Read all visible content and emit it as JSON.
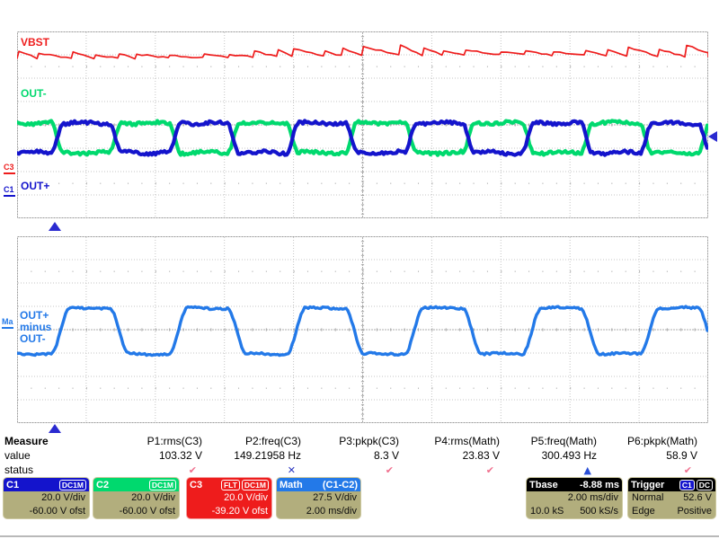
{
  "colors": {
    "c1": "#1414cc",
    "c2": "#00d96e",
    "c3": "#ee1c1c",
    "math": "#2379e8",
    "trigger_marker": "#2a2ad0",
    "grid": "#c4c4c4",
    "box_body": "#b2ae7d",
    "header_black": "#000000"
  },
  "display": {
    "top_panel": {
      "trace_labels": {
        "vbst": "VBST",
        "out_minus": "OUT-",
        "out_plus": "OUT+"
      },
      "zero_markers": {
        "c3": "C3",
        "c1": "C1"
      }
    },
    "bottom_panel": {
      "trace_label_lines": [
        "OUT+",
        "minus",
        "OUT-"
      ],
      "zero_markers": {
        "math": "Ma"
      }
    }
  },
  "measure": {
    "row_headers": {
      "measure": "Measure",
      "value": "value",
      "status": "status"
    },
    "columns": [
      {
        "label": "P1:rms(C3)",
        "value": "103.32 V",
        "status_glyph": "✔",
        "status_color": "#f0708e"
      },
      {
        "label": "P2:freq(C3)",
        "value": "149.21958 Hz",
        "status_glyph": "✕",
        "status_color": "#2a35c0"
      },
      {
        "label": "P3:pkpk(C3)",
        "value": "8.3 V",
        "status_glyph": "✔",
        "status_color": "#f0708e"
      },
      {
        "label": "P4:rms(Math)",
        "value": "23.83 V",
        "status_glyph": "✔",
        "status_color": "#f0708e"
      },
      {
        "label": "P5:freq(Math)",
        "value": "300.493 Hz",
        "status_glyph": "▲",
        "status_color": "#2a4fd6"
      },
      {
        "label": "P6:pkpk(Math)",
        "value": "58.9 V",
        "status_glyph": "✔",
        "status_color": "#f0708e"
      }
    ]
  },
  "channels": {
    "c1": {
      "name": "C1",
      "coupling_badge": "DC1M",
      "vdiv": "20.0 V/div",
      "offset": "-60.00 V ofst",
      "header_color": "#1414cc"
    },
    "c2": {
      "name": "C2",
      "coupling_badge": "DC1M",
      "vdiv": "20.0 V/div",
      "offset": "-60.00 V ofst",
      "header_color": "#00d96e"
    },
    "c3": {
      "name": "C3",
      "badges": [
        "FLT",
        "DC1M"
      ],
      "vdiv": "20.0 V/div",
      "offset": "-39.20 V ofst",
      "box_color": "#ee1c1c"
    },
    "math": {
      "name": "Math",
      "source": "(C1-C2)",
      "vdiv": "27.5 V/div",
      "tdiv": "2.00 ms/div",
      "header_color": "#2379e8"
    },
    "timebase": {
      "name": "Tbase",
      "delay": "-8.88 ms",
      "tdiv": "2.00 ms/div",
      "samples": "10.0 kS",
      "rate": "500 kS/s"
    },
    "trigger": {
      "name": "Trigger",
      "badges": [
        "C1",
        "DC"
      ],
      "mode": "Normal",
      "level": "52.6 V",
      "type": "Edge",
      "slope": "Positive"
    }
  }
}
